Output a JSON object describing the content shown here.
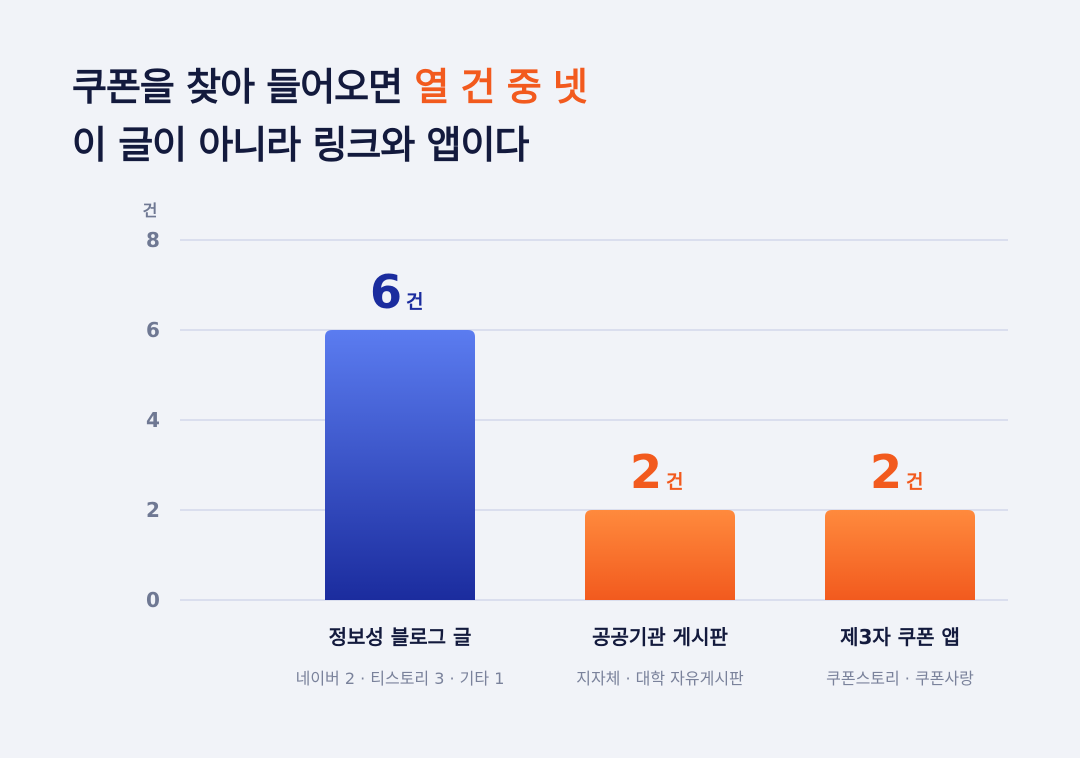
{
  "title": {
    "line1_prefix": "쿠폰을 찾아 들어오면 ",
    "line1_accent": "열 건 중 넷",
    "line2": "이 글이 아니라 링크와 앱이다"
  },
  "colors": {
    "primary_top": "#5b7cf0",
    "primary_bottom": "#1b2c9e",
    "accent_top": "#ff8a3d",
    "accent_bottom": "#f25a1e",
    "grid": "#d3d8ea",
    "title": "#131a3d"
  },
  "chart_data": {
    "type": "bar",
    "unit": "건",
    "ylim": [
      0,
      8
    ],
    "yticks": [
      "0",
      "2",
      "4",
      "6",
      "8"
    ],
    "grid": true,
    "categories": [
      "정보성 블로그 글",
      "공공기관 게시판",
      "제3자 쿠폰 앱"
    ],
    "subtitles": [
      "네이버 2 · 티스토리 3 · 기타 1",
      "지자체 · 대학 자유게시판",
      "쿠폰스토리 · 쿠폰사랑"
    ],
    "values": [
      6,
      2,
      2
    ],
    "value_labels": [
      "6",
      "2",
      "2"
    ],
    "bar_colors": [
      "primary",
      "accent",
      "accent"
    ]
  }
}
